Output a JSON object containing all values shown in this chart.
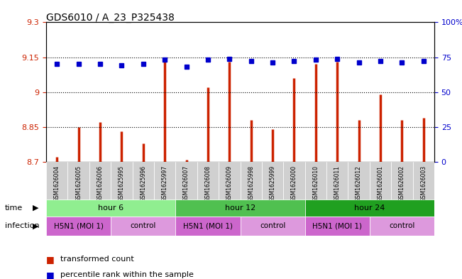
{
  "title": "GDS6010 / A_23_P325438",
  "samples": [
    "GSM1626004",
    "GSM1626005",
    "GSM1626006",
    "GSM1625995",
    "GSM1625996",
    "GSM1625997",
    "GSM1626007",
    "GSM1626008",
    "GSM1626009",
    "GSM1625998",
    "GSM1625999",
    "GSM1626000",
    "GSM1626010",
    "GSM1626011",
    "GSM1626012",
    "GSM1626001",
    "GSM1626002",
    "GSM1626003"
  ],
  "red_values": [
    8.72,
    8.85,
    8.87,
    8.83,
    8.78,
    9.13,
    8.71,
    9.02,
    9.13,
    8.88,
    8.84,
    9.06,
    9.12,
    9.13,
    8.88,
    8.99,
    8.88,
    8.89
  ],
  "blue_values": [
    0.7,
    0.7,
    0.7,
    0.69,
    0.7,
    0.73,
    0.68,
    0.73,
    0.74,
    0.72,
    0.71,
    0.72,
    0.73,
    0.74,
    0.71,
    0.72,
    0.71,
    0.72
  ],
  "ylim_left": [
    8.7,
    9.3
  ],
  "ylim_right": [
    0,
    100
  ],
  "yticks_left": [
    8.7,
    8.85,
    9.0,
    9.15,
    9.3
  ],
  "yticks_right": [
    0,
    25,
    50,
    75,
    100
  ],
  "ytick_labels_left": [
    "8.7",
    "8.85",
    "9",
    "9.15",
    "9.3"
  ],
  "ytick_labels_right": [
    "0",
    "25",
    "50",
    "75",
    "100%"
  ],
  "hlines": [
    8.85,
    9.0,
    9.15
  ],
  "time_groups": [
    {
      "label": "hour 6",
      "start": 0,
      "end": 6,
      "color": "#90ee90"
    },
    {
      "label": "hour 12",
      "start": 6,
      "end": 12,
      "color": "#50c050"
    },
    {
      "label": "hour 24",
      "start": 12,
      "end": 18,
      "color": "#20a020"
    }
  ],
  "infection_groups": [
    {
      "label": "H5N1 (MOI 1)",
      "start": 0,
      "end": 3,
      "color": "#cc66cc"
    },
    {
      "label": "control",
      "start": 3,
      "end": 6,
      "color": "#dd99dd"
    },
    {
      "label": "H5N1 (MOI 1)",
      "start": 6,
      "end": 9,
      "color": "#cc66cc"
    },
    {
      "label": "control",
      "start": 9,
      "end": 12,
      "color": "#dd99dd"
    },
    {
      "label": "H5N1 (MOI 1)",
      "start": 12,
      "end": 15,
      "color": "#cc66cc"
    },
    {
      "label": "control",
      "start": 15,
      "end": 18,
      "color": "#dd99dd"
    }
  ],
  "bar_color": "#cc2200",
  "dot_color": "#0000cc",
  "background_color": "#ffffff",
  "legend": [
    {
      "label": "transformed count",
      "color": "#cc2200",
      "marker": "s"
    },
    {
      "label": "percentile rank within the sample",
      "color": "#0000cc",
      "marker": "s"
    }
  ]
}
